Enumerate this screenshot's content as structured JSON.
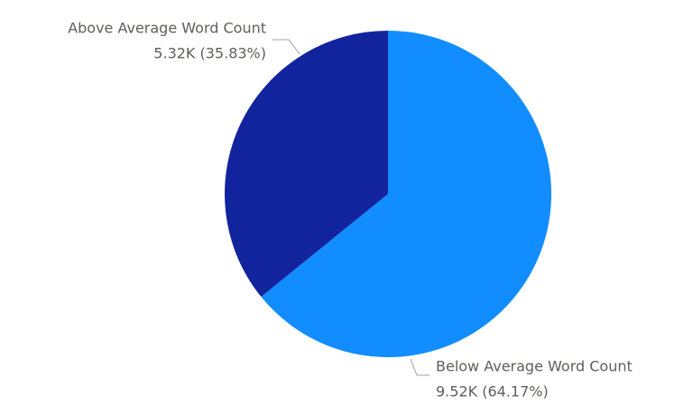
{
  "chart_data": {
    "type": "pie",
    "categories": [
      "Below Average Word Count",
      "Above Average Word Count"
    ],
    "values": [
      9520,
      5320
    ],
    "value_labels": [
      "9.52K (64.17%)",
      "5.32K (35.83%)"
    ],
    "colors": [
      "#118DFF",
      "#12239E"
    ]
  }
}
